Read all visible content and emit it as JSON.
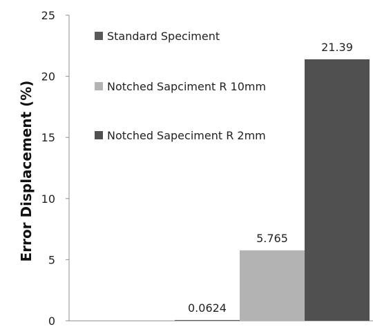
{
  "chart_data": {
    "type": "bar",
    "ylabel": "Error Displacement (%)",
    "xlabel": "",
    "title": "",
    "ylim": [
      0,
      25
    ],
    "yticks": [
      0,
      5,
      10,
      15,
      20,
      25
    ],
    "grid": false,
    "legend_position": "top-left",
    "series": [
      {
        "name": "Standard Speciment",
        "value": 0.0624,
        "label": "0.0624",
        "color": "#595959"
      },
      {
        "name": "Notched Sapciment R 10mm",
        "value": 5.765,
        "label": "5.765",
        "color": "#b3b3b3"
      },
      {
        "name": "Notched Sapeciment R 2mm",
        "value": 21.39,
        "label": "21.39",
        "color": "#505050"
      }
    ]
  }
}
